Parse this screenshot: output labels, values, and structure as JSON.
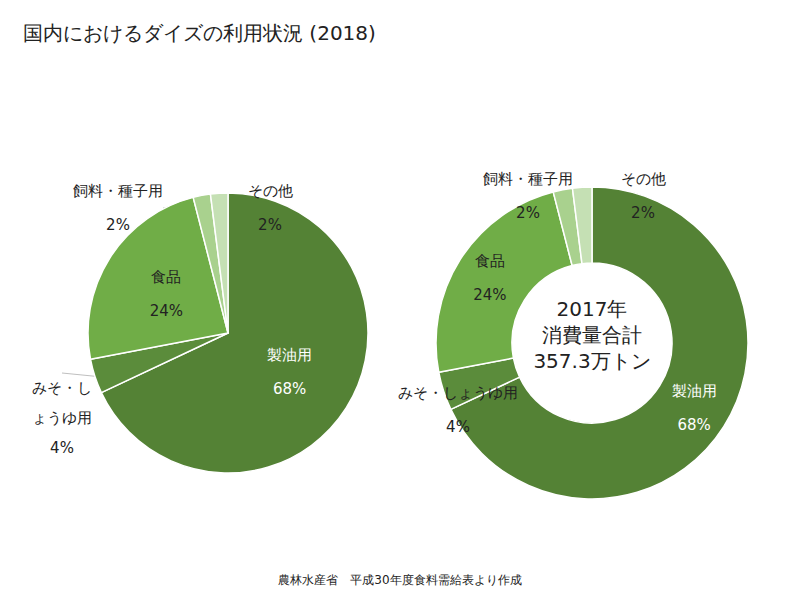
{
  "title": "国内におけるダイズの利用状況 (2018)",
  "source": "農林水産省　平成30年度食料需給表より作成",
  "chart_data": [
    {
      "type": "pie",
      "categories": [
        "製油用",
        "みそ・しょうゆ用",
        "食品",
        "飼料・種子用",
        "その他"
      ],
      "values": [
        68,
        4,
        24,
        2,
        2
      ],
      "value_labels": [
        "68%",
        "4%",
        "24%",
        "2%",
        "2%"
      ],
      "colors": [
        "#548235",
        "#5b8c3b",
        "#70ad47",
        "#a9d18e",
        "#c5e0b4"
      ],
      "data_labels": true
    },
    {
      "type": "donut",
      "categories": [
        "製油用",
        "みそ・しょうゆ用",
        "食品",
        "飼料・種子用",
        "その他"
      ],
      "values": [
        68,
        4,
        24,
        2,
        2
      ],
      "value_labels": [
        "68%",
        "4%",
        "24%",
        "2%",
        "2%"
      ],
      "colors": [
        "#548235",
        "#5b8c3b",
        "#70ad47",
        "#a9d18e",
        "#c5e0b4"
      ],
      "data_labels": true,
      "center_text": [
        "2017年",
        "消費量合計",
        "357.3万トン"
      ]
    }
  ]
}
